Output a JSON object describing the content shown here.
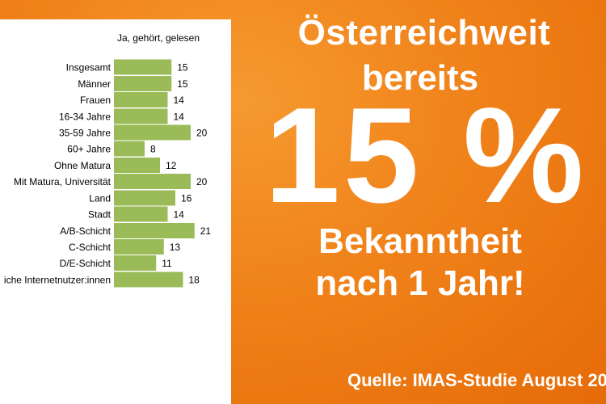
{
  "headline": {
    "line1": "Österreichweit",
    "line2": "bereits",
    "big": "15 %",
    "line3": "Bekanntheit",
    "line4": "nach 1 Jahr!"
  },
  "source": "Quelle: IMAS-Studie August 20",
  "colors": {
    "bar": "#9bbb59",
    "background": "#f08a1e",
    "panel": "#ffffff"
  },
  "chart_data": {
    "type": "bar",
    "orientation": "horizontal",
    "title": "",
    "series": [
      {
        "name": "Ja, gehört, gelesen",
        "values": [
          15,
          15,
          14,
          14,
          20,
          8,
          12,
          20,
          16,
          14,
          21,
          13,
          11,
          18
        ]
      }
    ],
    "categories": [
      "Insgesamt",
      "Männer",
      "Frauen",
      "16-34 Jahre",
      "35-59 Jahre",
      "60+ Jahre",
      "Ohne Matura",
      "Mit Matura, Universität",
      "Land",
      "Stadt",
      "A/B-Schicht",
      "C-Schicht",
      "D/E-Schicht",
      "iche Internetnutzer:innen"
    ],
    "groups": [
      [
        0
      ],
      [
        1,
        2
      ],
      [
        3,
        4,
        5
      ],
      [
        6,
        7
      ],
      [
        8,
        9
      ],
      [
        10,
        11,
        12
      ],
      [
        13
      ]
    ],
    "grid": false,
    "data_labels": true
  }
}
